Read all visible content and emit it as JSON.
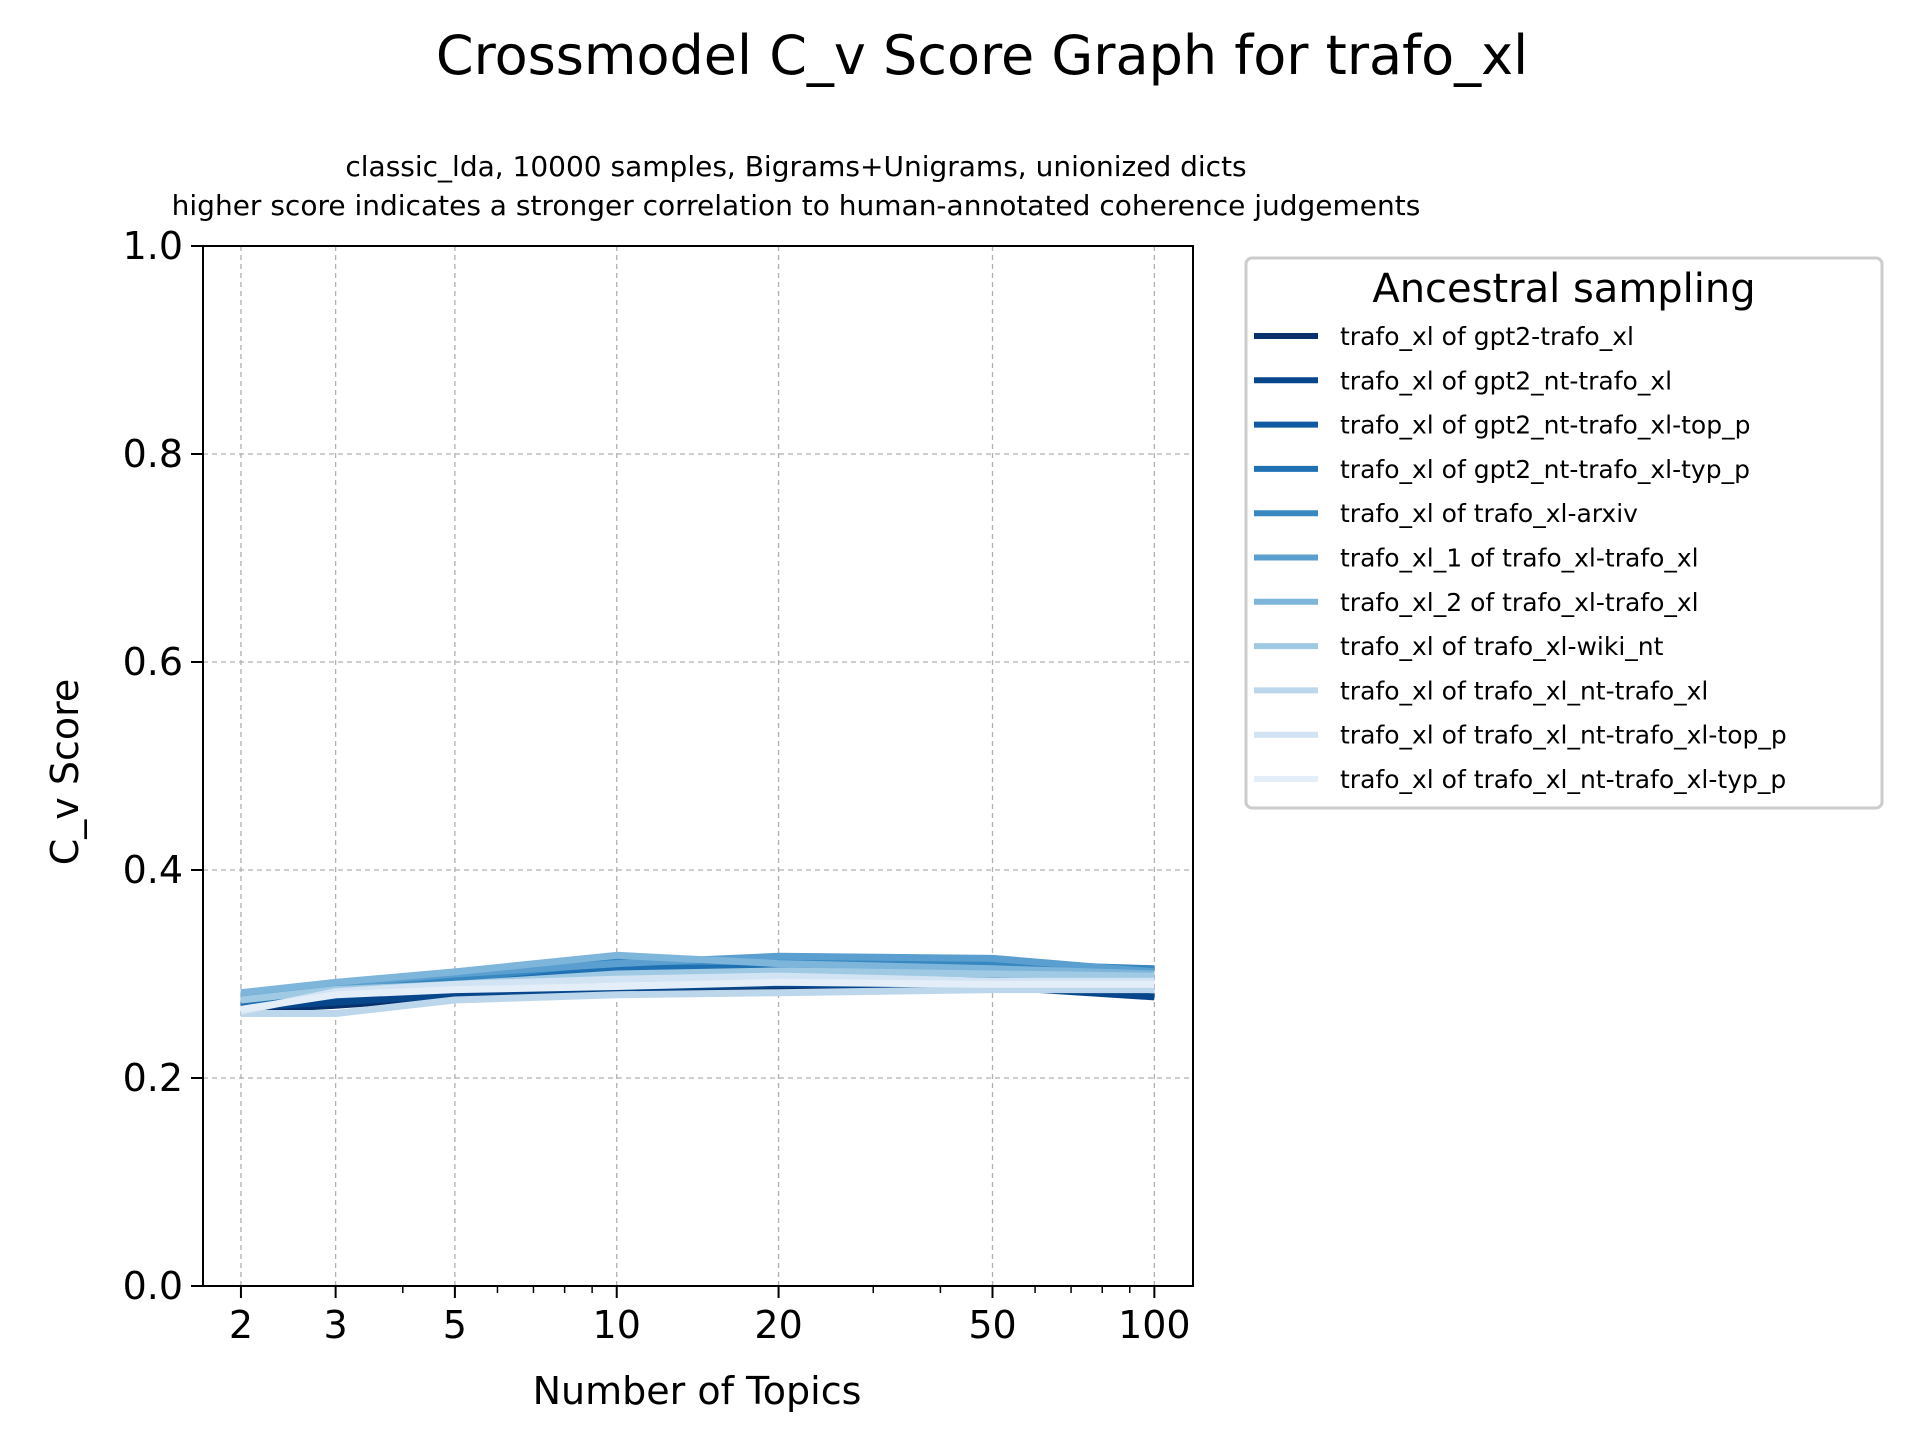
{
  "chart_data": {
    "type": "line",
    "title": "Crossmodel C_v Score Graph for trafo_xl",
    "subtitle_lines": [
      "classic_lda, 10000 samples, Bigrams+Unigrams, unionized dicts",
      "higher score indicates a stronger correlation to human-annotated coherence judgements"
    ],
    "xlabel": "Number of Topics",
    "ylabel": "C_v Score",
    "x_scale": "log",
    "x": [
      2,
      3,
      5,
      10,
      20,
      50,
      100
    ],
    "x_tick_labels": [
      "2",
      "3",
      "5",
      "10",
      "20",
      "50",
      "100"
    ],
    "ylim": [
      0,
      1
    ],
    "y_ticks": [
      0.0,
      0.2,
      0.4,
      0.6,
      0.8,
      1.0
    ],
    "y_tick_labels": [
      "0.0",
      "0.2",
      "0.4",
      "0.6",
      "0.8",
      "1.0"
    ],
    "grid": true,
    "legend": {
      "title": "Ancestral sampling",
      "placement": "outside-right"
    },
    "series": [
      {
        "name": "trafo_xl of gpt2-trafo_xl",
        "color": "#08306b",
        "values": [
          0.265,
          0.27,
          0.278,
          0.283,
          0.287,
          0.288,
          0.287
        ]
      },
      {
        "name": "trafo_xl of gpt2_nt-trafo_xl",
        "color": "#08468b",
        "values": [
          0.268,
          0.273,
          0.28,
          0.286,
          0.29,
          0.288,
          0.278
        ]
      },
      {
        "name": "trafo_xl of gpt2_nt-trafo_xl-top_p",
        "color": "#0f5aa3",
        "values": [
          0.27,
          0.279,
          0.288,
          0.298,
          0.302,
          0.298,
          0.29
        ]
      },
      {
        "name": "trafo_xl of gpt2_nt-trafo_xl-typ_p",
        "color": "#2070b4",
        "values": [
          0.272,
          0.28,
          0.29,
          0.305,
          0.306,
          0.302,
          0.298
        ]
      },
      {
        "name": "trafo_xl of trafo_xl-arxiv",
        "color": "#3787c0",
        "values": [
          0.275,
          0.285,
          0.295,
          0.312,
          0.312,
          0.31,
          0.305
        ]
      },
      {
        "name": "trafo_xl_1 of trafo_xl-trafo_xl",
        "color": "#5a9fcf",
        "values": [
          0.28,
          0.29,
          0.3,
          0.31,
          0.317,
          0.315,
          0.302
        ]
      },
      {
        "name": "trafo_xl_2 of trafo_xl-trafo_xl",
        "color": "#7db5db",
        "values": [
          0.282,
          0.292,
          0.302,
          0.318,
          0.31,
          0.305,
          0.3
        ]
      },
      {
        "name": "trafo_xl of trafo_xl-wiki_nt",
        "color": "#a0cae4",
        "values": [
          0.275,
          0.285,
          0.29,
          0.3,
          0.303,
          0.3,
          0.298
        ]
      },
      {
        "name": "trafo_xl of trafo_xl_nt-trafo_xl",
        "color": "#bcd7eb",
        "values": [
          0.262,
          0.262,
          0.275,
          0.28,
          0.282,
          0.285,
          0.285
        ]
      },
      {
        "name": "trafo_xl of trafo_xl_nt-trafo_xl-top_p",
        "color": "#d2e3f3",
        "values": [
          0.264,
          0.283,
          0.29,
          0.295,
          0.298,
          0.293,
          0.293
        ]
      },
      {
        "name": "trafo_xl of trafo_xl_nt-trafo_xl-typ_p",
        "color": "#e3eef9",
        "values": [
          0.266,
          0.28,
          0.285,
          0.288,
          0.292,
          0.29,
          0.29
        ]
      }
    ]
  }
}
